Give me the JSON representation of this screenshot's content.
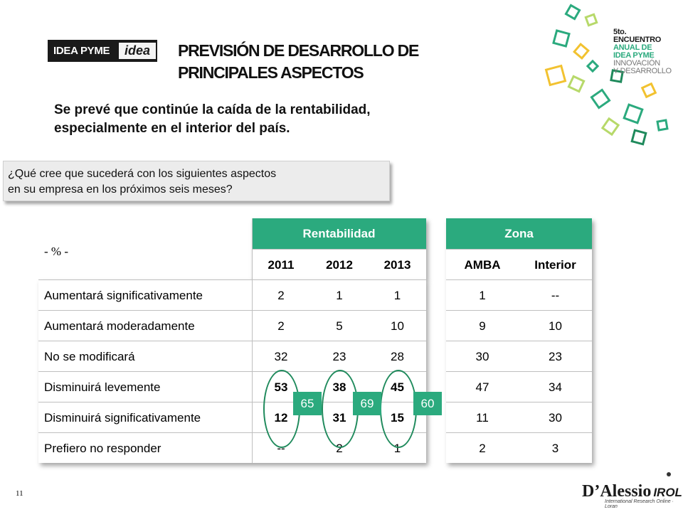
{
  "logo": {
    "left": "IDEA PYME",
    "right": "idea"
  },
  "title_lines": [
    "PREVISIÓN DE DESARROLLO DE",
    "PRINCIPALES ASPECTOS"
  ],
  "subtitle_lines": [
    "Se prevé que continúe la caída de la rentabilidad,",
    "especialmente en el interior del país."
  ],
  "question_lines": [
    "¿Qué cree que sucederá con los siguientes aspectos",
    "en su empresa en los próximos seis meses?"
  ],
  "unit_label": "- % -",
  "rentabilidad": {
    "header": "Rentabilidad",
    "years": [
      "2011",
      "2012",
      "2013"
    ],
    "rows": [
      {
        "label": "Aumentará significativamente",
        "values": [
          "2",
          "1",
          "1"
        ]
      },
      {
        "label": "Aumentará moderadamente",
        "values": [
          "2",
          "5",
          "10"
        ]
      },
      {
        "label": "No se modificará",
        "values": [
          "32",
          "23",
          "28"
        ]
      },
      {
        "label": "Disminuirá levemente",
        "values": [
          "53",
          "38",
          "45"
        ]
      },
      {
        "label": "Disminuirá significativamente",
        "values": [
          "12",
          "31",
          "15"
        ]
      },
      {
        "label": "Prefiero no responder",
        "values": [
          "--",
          "2",
          "1"
        ]
      }
    ]
  },
  "zona": {
    "header": "Zona",
    "cols": [
      "AMBA",
      "Interior"
    ],
    "rows": [
      [
        "1",
        "--"
      ],
      [
        "9",
        "10"
      ],
      [
        "30",
        "23"
      ],
      [
        "47",
        "34"
      ],
      [
        "11",
        "30"
      ],
      [
        "2",
        "3"
      ]
    ]
  },
  "badges": [
    "65",
    "69",
    "60"
  ],
  "page_number": "11",
  "brand": {
    "main": "D’Alessio",
    "irol": "IROL",
    "sub": "International Research Online · Loran"
  },
  "event": {
    "lines": [
      "5to.",
      "ENCUENTRO",
      "ANUAL DE",
      "IDEA PYME",
      "INNOVACIÓN",
      "Y DESARROLLO"
    ]
  },
  "colors": {
    "accent_green": "#2baa7e",
    "dark_green": "#1f8a5c",
    "border_gray": "#bfbfbf"
  }
}
